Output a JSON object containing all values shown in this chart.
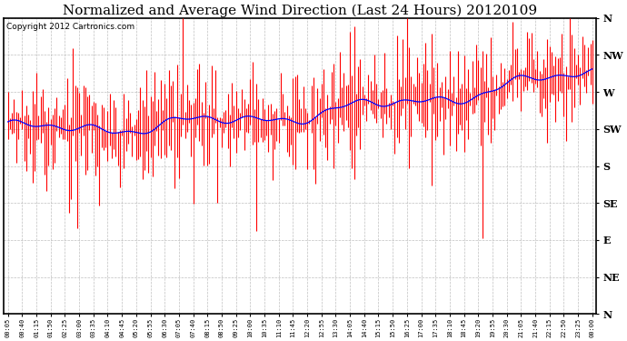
{
  "title": "Normalized and Average Wind Direction (Last 24 Hours) 20120109",
  "copyright_text": "Copyright 2012 Cartronics.com",
  "ytick_labels": [
    "N",
    "NW",
    "W",
    "SW",
    "S",
    "SE",
    "E",
    "NE",
    "N"
  ],
  "ytick_values": [
    360,
    315,
    270,
    225,
    180,
    135,
    90,
    45,
    0
  ],
  "ylim": [
    0,
    360
  ],
  "background_color": "#ffffff",
  "plot_bg_color": "#ffffff",
  "grid_color": "#b0b0b0",
  "red_color": "#ff0000",
  "blue_color": "#0000ff",
  "title_fontsize": 11,
  "copyright_fontsize": 6.5,
  "n_points": 288,
  "figsize": [
    6.9,
    3.75
  ],
  "dpi": 100
}
